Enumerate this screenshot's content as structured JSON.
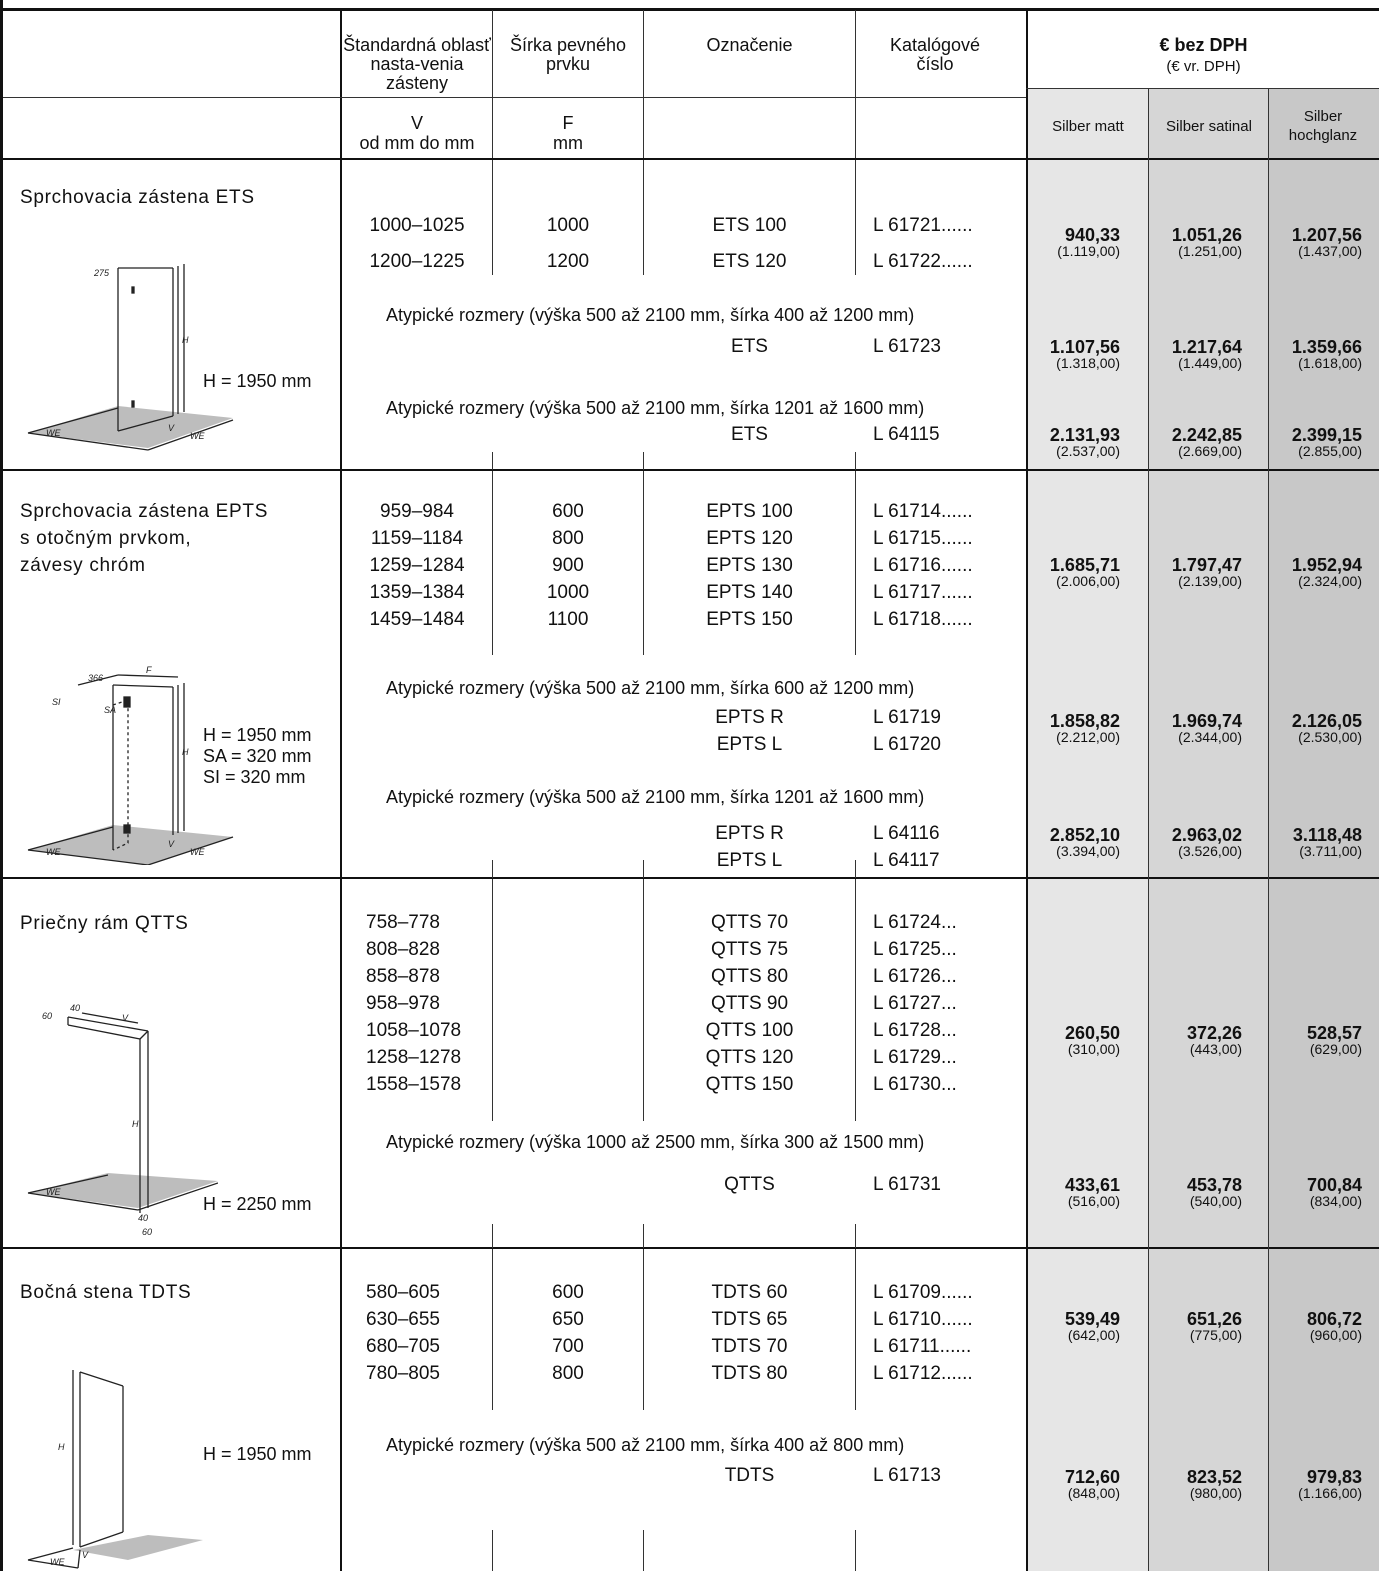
{
  "header": {
    "col_v_title": "Štandardná oblasť nasta-venia zásteny",
    "col_v_symbol": "V",
    "col_v_unit": "od mm  do mm",
    "col_f_title": "Šírka pevného prvku",
    "col_f_symbol": "F",
    "col_f_unit": "mm",
    "col_name": "Označenie",
    "col_cat": "Katalógové číslo",
    "price_title": "€ bez DPH",
    "price_sub": "(€ vr. DPH)",
    "finish1": "Silber matt",
    "finish2": "Silber satinal",
    "finish3": "Silber hochglanz"
  },
  "sections": [
    {
      "title": "Sprchovacia zástena ETS",
      "height_note": "H = 1950 mm",
      "diagram_labels": [
        "275",
        "H",
        "V",
        "WE",
        "WE"
      ],
      "v_range": [
        "1000–1025",
        "1200–1225"
      ],
      "f_width": [
        "1000",
        "1200"
      ],
      "designation": [
        "ETS 100",
        "ETS 120"
      ],
      "catalog": [
        "L 61721......",
        "L 61722......"
      ],
      "price": [
        "940,33",
        "1.051,26",
        "1.207,56"
      ],
      "price_gross": [
        "(1.119,00)",
        "(1.251,00)",
        "(1.437,00)"
      ],
      "atypical": [
        {
          "note": "Atypické rozmery (výška 500 až 2100 mm, šírka 400 až 1200 mm)",
          "designation": [
            "ETS"
          ],
          "catalog": [
            "L 61723"
          ],
          "price": [
            "1.107,56",
            "1.217,64",
            "1.359,66"
          ],
          "price_gross": [
            "(1.318,00)",
            "(1.449,00)",
            "(1.618,00)"
          ]
        },
        {
          "note": "Atypické rozmery (výška 500 až 2100 mm, šírka 1201 až 1600 mm)",
          "designation": [
            "ETS"
          ],
          "catalog": [
            "L 64115"
          ],
          "price": [
            "2.131,93",
            "2.242,85",
            "2.399,15"
          ],
          "price_gross": [
            "(2.537,00)",
            "(2.669,00)",
            "(2.855,00)"
          ]
        }
      ]
    },
    {
      "title": "Sprchovacia zástena EPTS\ns otočným prvkom,\nzávesy chróm",
      "height_note": "H = 1950 mm\nSA = 320 mm\nSI = 320 mm",
      "diagram_labels": [
        "366",
        "F",
        "SI",
        "SA",
        "H",
        "V",
        "WE",
        "WE"
      ],
      "v_range": [
        "959–984",
        "1159–1184",
        "1259–1284",
        "1359–1384",
        "1459–1484"
      ],
      "f_width": [
        "600",
        "800",
        "900",
        "1000",
        "1100"
      ],
      "designation": [
        "EPTS 100",
        "EPTS 120",
        "EPTS 130",
        "EPTS 140",
        "EPTS 150"
      ],
      "catalog": [
        "L 61714......",
        "L 61715......",
        "L 61716......",
        "L 61717......",
        "L 61718......"
      ],
      "price": [
        "1.685,71",
        "1.797,47",
        "1.952,94"
      ],
      "price_gross": [
        "(2.006,00)",
        "(2.139,00)",
        "(2.324,00)"
      ],
      "atypical": [
        {
          "note": "Atypické rozmery (výška 500 až 2100 mm, šírka 600 až 1200 mm)",
          "designation": [
            "EPTS  R",
            "EPTS  L"
          ],
          "catalog": [
            "L 61719",
            "L 61720"
          ],
          "price": [
            "1.858,82",
            "1.969,74",
            "2.126,05"
          ],
          "price_gross": [
            "(2.212,00)",
            "(2.344,00)",
            "(2.530,00)"
          ]
        },
        {
          "note": "Atypické rozmery (výška 500 až 2100 mm, šírka 1201 až 1600 mm)",
          "designation": [
            "EPTS  R",
            "EPTS  L"
          ],
          "catalog": [
            "L 64116",
            "L 64117"
          ],
          "price": [
            "2.852,10",
            "2.963,02",
            "3.118,48"
          ],
          "price_gross": [
            "(3.394,00)",
            "(3.526,00)",
            "(3.711,00)"
          ]
        }
      ]
    },
    {
      "title": "Priečny rám QTTS",
      "height_note": "H = 2250 mm",
      "diagram_labels": [
        "60",
        "40",
        "V",
        "H",
        "WE",
        "40",
        "60"
      ],
      "v_range": [
        "758–778",
        "808–828",
        "858–878",
        "958–978",
        "1058–1078",
        "1258–1278",
        "1558–1578"
      ],
      "f_width": [],
      "designation": [
        "QTTS 70",
        "QTTS 75",
        "QTTS 80",
        "QTTS 90",
        "QTTS 100",
        "QTTS 120",
        "QTTS 150"
      ],
      "catalog": [
        "L 61724...",
        "L 61725...",
        "L 61726...",
        "L 61727...",
        "L 61728...",
        "L 61729...",
        "L 61730..."
      ],
      "price": [
        "260,50",
        "372,26",
        "528,57"
      ],
      "price_gross": [
        "(310,00)",
        "(443,00)",
        "(629,00)"
      ],
      "atypical": [
        {
          "note": "Atypické rozmery (výška 1000 až 2500 mm, šírka 300 až 1500 mm)",
          "designation": [
            "QTTS"
          ],
          "catalog": [
            "L 61731"
          ],
          "price": [
            "433,61",
            "453,78",
            "700,84"
          ],
          "price_gross": [
            "(516,00)",
            "(540,00)",
            "(834,00)"
          ]
        }
      ]
    },
    {
      "title": "Bočná stena TDTS",
      "height_note": "H = 1950 mm",
      "diagram_labels": [
        "H",
        "V",
        "WE"
      ],
      "v_range": [
        "580–605",
        "630–655",
        "680–705",
        "780–805"
      ],
      "f_width": [
        "600",
        "650",
        "700",
        "800"
      ],
      "designation": [
        "TDTS 60",
        "TDTS 65",
        "TDTS 70",
        "TDTS 80"
      ],
      "catalog": [
        "L 61709......",
        "L 61710......",
        "L 61711......",
        "L 61712......"
      ],
      "price": [
        "539,49",
        "651,26",
        "806,72"
      ],
      "price_gross": [
        "(642,00)",
        "(775,00)",
        "(960,00)"
      ],
      "atypical": [
        {
          "note": "Atypické rozmery (výška 500 až 2100 mm, šírka 400 až 800 mm)",
          "designation": [
            "TDTS"
          ],
          "catalog": [
            "L 61713"
          ],
          "price": [
            "712,60",
            "823,52",
            "979,83"
          ],
          "price_gross": [
            "(848,00)",
            "(980,00)",
            "(1.166,00)"
          ]
        }
      ]
    }
  ]
}
